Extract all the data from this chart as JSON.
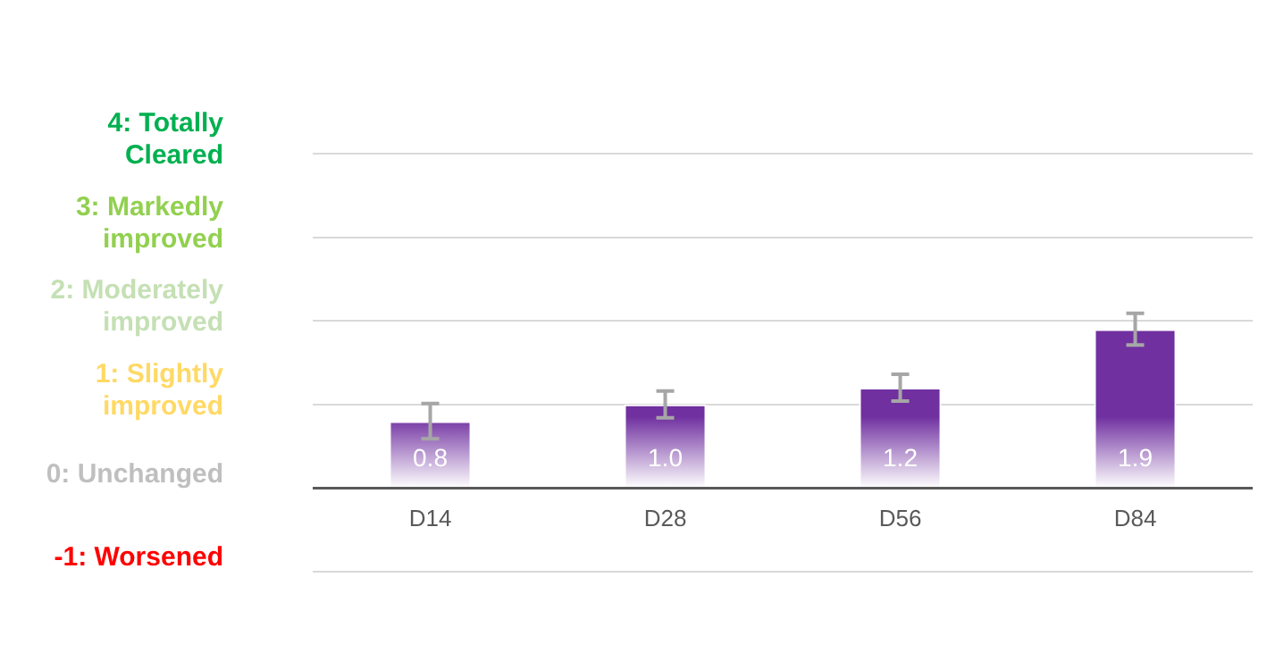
{
  "chart_data": {
    "type": "bar",
    "categories": [
      "D14",
      "D28",
      "D56",
      "D84"
    ],
    "values": [
      0.8,
      1.0,
      1.2,
      1.9
    ],
    "value_labels": [
      "0.8",
      "1.0",
      "1.2",
      "1.9"
    ],
    "errors": [
      0.21,
      0.16,
      0.16,
      0.19
    ],
    "color": "#7030a0",
    "ylim": [
      -1,
      4
    ],
    "yticks": [
      {
        "value": -1,
        "label": "-1: Worsened"
      },
      {
        "value": 0,
        "label": "0: Unchanged"
      },
      {
        "value": 1,
        "label": "1: Slightly improved"
      },
      {
        "value": 2,
        "label": "2: Moderately improved"
      },
      {
        "value": 3,
        "label": "3: Markedly improved"
      },
      {
        "value": 4,
        "label": "4: Totally Cleared"
      }
    ],
    "grid": "y"
  }
}
